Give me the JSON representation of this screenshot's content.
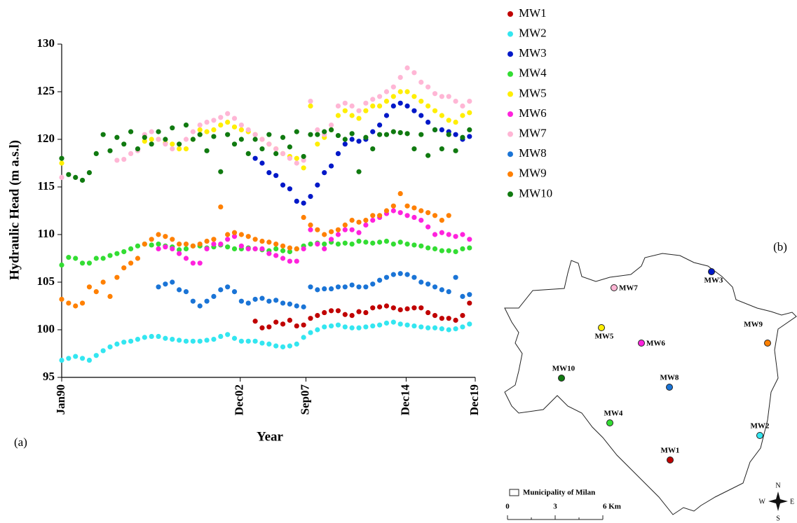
{
  "chart_data": {
    "type": "scatter",
    "y_label": "Hydraulic Head (m a.s.l)",
    "x_label": "Year",
    "panel_label": "(a)",
    "x": [
      "1990-01",
      "1990-07",
      "1991-01",
      "1991-07",
      "1992-01",
      "1992-07",
      "1993-01",
      "1993-07",
      "1994-01",
      "1994-07",
      "1995-01",
      "1995-07",
      "1996-01",
      "1996-07",
      "1997-01",
      "1997-07",
      "1998-01",
      "1998-07",
      "1999-01",
      "1999-07",
      "2000-01",
      "2000-07",
      "2001-01",
      "2001-07",
      "2002-01",
      "2002-07",
      "2003-01",
      "2003-07",
      "2004-01",
      "2004-07",
      "2005-01",
      "2005-07",
      "2006-01",
      "2006-07",
      "2007-01",
      "2007-07",
      "2008-01",
      "2008-07",
      "2009-01",
      "2009-07",
      "2010-01",
      "2010-07",
      "2011-01",
      "2011-07",
      "2012-01",
      "2012-07",
      "2013-01",
      "2013-07",
      "2014-01",
      "2014-07",
      "2015-01",
      "2015-07",
      "2016-01",
      "2016-07",
      "2017-01",
      "2017-07",
      "2018-01",
      "2018-07",
      "2019-01",
      "2019-07"
    ],
    "xlim": [
      "1990-01",
      "2019-12"
    ],
    "xticks": [
      {
        "value": "1990-01",
        "label": "Jan90"
      },
      {
        "value": "2002-12",
        "label": "Dec02"
      },
      {
        "value": "2007-09",
        "label": "Sep07"
      },
      {
        "value": "2014-12",
        "label": "Dec14"
      },
      {
        "value": "2019-12",
        "label": "Dec19"
      }
    ],
    "ylim": [
      95,
      130
    ],
    "yticks": [
      95,
      100,
      105,
      110,
      115,
      120,
      125,
      130
    ],
    "series": [
      {
        "name": "MW1",
        "color": "#c00000",
        "values": [
          null,
          null,
          null,
          null,
          null,
          null,
          null,
          null,
          null,
          null,
          null,
          null,
          null,
          null,
          null,
          null,
          null,
          null,
          null,
          null,
          null,
          null,
          null,
          null,
          null,
          null,
          null,
          null,
          100.9,
          100.2,
          100.3,
          100.8,
          100.6,
          101.0,
          100.4,
          100.5,
          101.2,
          101.5,
          101.8,
          102.0,
          102.0,
          101.6,
          101.5,
          101.9,
          101.8,
          102.3,
          102.4,
          102.5,
          102.3,
          102.1,
          102.2,
          102.3,
          102.3,
          101.8,
          101.5,
          101.2,
          101.2,
          101.0,
          101.5,
          102.8
        ]
      },
      {
        "name": "MW2",
        "color": "#33e6f0",
        "values": [
          96.8,
          97.0,
          97.2,
          97.0,
          96.8,
          97.3,
          97.8,
          98.2,
          98.5,
          98.7,
          98.8,
          99.0,
          99.2,
          99.3,
          99.3,
          99.1,
          99.0,
          98.9,
          98.8,
          98.8,
          98.8,
          98.9,
          99.0,
          99.3,
          99.5,
          99.1,
          98.8,
          98.8,
          98.8,
          98.6,
          98.5,
          98.3,
          98.2,
          98.3,
          98.5,
          99.2,
          99.7,
          100.0,
          100.3,
          100.4,
          100.5,
          100.3,
          100.2,
          100.2,
          100.3,
          100.4,
          100.5,
          100.7,
          100.8,
          100.6,
          100.5,
          100.4,
          100.3,
          100.2,
          100.2,
          100.1,
          100.0,
          100.1,
          100.3,
          100.6
        ]
      },
      {
        "name": "MW3",
        "color": "#0018c8",
        "values": [
          null,
          null,
          null,
          null,
          null,
          null,
          null,
          null,
          null,
          null,
          null,
          null,
          null,
          null,
          null,
          null,
          null,
          null,
          null,
          null,
          null,
          null,
          null,
          null,
          null,
          null,
          null,
          null,
          118.0,
          117.5,
          116.5,
          116.2,
          115.2,
          114.8,
          113.5,
          113.3,
          114.0,
          115.2,
          116.5,
          117.2,
          118.5,
          119.5,
          120.0,
          119.8,
          120.0,
          120.8,
          121.5,
          122.5,
          123.5,
          123.8,
          123.5,
          123.0,
          122.5,
          121.8,
          121.0,
          121.0,
          120.8,
          120.5,
          120.0,
          120.3
        ]
      },
      {
        "name": "MW4",
        "color": "#33dd33",
        "values": [
          106.8,
          107.6,
          107.5,
          107.0,
          107.0,
          107.5,
          107.5,
          107.8,
          108.0,
          108.2,
          108.5,
          108.8,
          109.0,
          108.9,
          109.0,
          108.8,
          108.7,
          108.4,
          108.5,
          108.8,
          108.8,
          108.6,
          108.7,
          108.9,
          108.7,
          108.5,
          108.5,
          108.6,
          108.5,
          108.4,
          108.3,
          108.5,
          108.3,
          108.2,
          108.5,
          108.8,
          109.0,
          109.1,
          109.0,
          109.2,
          109.0,
          109.1,
          109.0,
          109.3,
          109.2,
          109.1,
          109.2,
          109.3,
          109.0,
          109.2,
          109.0,
          108.9,
          108.8,
          108.6,
          108.5,
          108.3,
          108.3,
          108.2,
          108.5,
          108.6
        ]
      },
      {
        "name": "MW5",
        "color": "#ffee00",
        "values": [
          117.5,
          null,
          null,
          null,
          null,
          null,
          null,
          null,
          null,
          null,
          null,
          null,
          119.8,
          120.0,
          120.0,
          119.6,
          119.5,
          119.0,
          119.0,
          120.0,
          121.0,
          120.8,
          121.0,
          121.5,
          121.8,
          121.3,
          121.0,
          120.8,
          120.5,
          120.0,
          119.5,
          119.0,
          118.5,
          118.2,
          118.0,
          117.0,
          123.5,
          119.5,
          120.2,
          121.0,
          122.5,
          123.0,
          122.5,
          122.2,
          123.0,
          123.5,
          123.5,
          124.0,
          124.5,
          125.0,
          125.0,
          124.5,
          124.0,
          123.5,
          123.0,
          122.5,
          122.0,
          121.8,
          122.5,
          122.8
        ]
      },
      {
        "name": "MW6",
        "color": "#ff22dd",
        "values": [
          null,
          null,
          null,
          null,
          null,
          null,
          null,
          null,
          null,
          null,
          null,
          null,
          null,
          null,
          108.5,
          108.7,
          108.5,
          108.0,
          107.5,
          107.0,
          107.0,
          108.5,
          109.0,
          109.0,
          109.5,
          109.8,
          108.8,
          108.5,
          108.5,
          108.5,
          108.0,
          107.8,
          107.5,
          107.2,
          107.2,
          108.5,
          110.5,
          109.0,
          108.5,
          109.5,
          110.0,
          110.5,
          110.5,
          110.2,
          111.0,
          111.5,
          111.8,
          112.2,
          112.5,
          112.3,
          112.0,
          111.8,
          111.5,
          110.8,
          110.0,
          110.2,
          110.0,
          109.8,
          110.0,
          109.5
        ]
      },
      {
        "name": "MW7",
        "color": "#ffb6d5",
        "values": [
          116.0,
          null,
          null,
          null,
          null,
          null,
          null,
          null,
          117.8,
          117.9,
          118.5,
          118.8,
          120.5,
          120.8,
          120.0,
          119.5,
          119.0,
          119.5,
          120.0,
          120.8,
          121.5,
          121.8,
          122.0,
          122.3,
          122.7,
          122.2,
          121.5,
          121.0,
          120.5,
          120.0,
          119.5,
          119.0,
          118.5,
          118.0,
          117.5,
          117.8,
          124.0,
          121.0,
          120.5,
          121.5,
          123.5,
          123.8,
          123.5,
          123.0,
          123.8,
          124.2,
          124.5,
          125.0,
          125.5,
          126.5,
          127.5,
          127.0,
          126.0,
          125.5,
          124.8,
          124.5,
          124.5,
          124.0,
          123.5,
          124.0
        ]
      },
      {
        "name": "MW8",
        "color": "#1a74d6",
        "values": [
          null,
          null,
          null,
          null,
          null,
          null,
          null,
          null,
          null,
          null,
          null,
          null,
          null,
          null,
          104.5,
          104.8,
          105.0,
          104.2,
          104.0,
          103.0,
          102.5,
          103.0,
          103.5,
          104.2,
          104.5,
          104.0,
          103.0,
          102.8,
          103.2,
          103.3,
          103.0,
          103.1,
          102.8,
          102.7,
          102.5,
          102.4,
          104.5,
          104.2,
          104.3,
          104.3,
          104.5,
          104.5,
          104.7,
          104.5,
          104.5,
          104.8,
          105.2,
          105.5,
          105.8,
          105.9,
          105.8,
          105.5,
          105.0,
          104.8,
          104.5,
          104.2,
          104.0,
          105.5,
          103.5,
          103.7
        ]
      },
      {
        "name": "MW9",
        "color": "#ff8000",
        "values": [
          103.2,
          102.8,
          102.5,
          102.8,
          104.5,
          104.0,
          105.0,
          103.5,
          105.5,
          106.5,
          107.0,
          107.5,
          109.0,
          109.5,
          110.0,
          109.8,
          109.5,
          109.0,
          109.0,
          108.8,
          109.0,
          109.3,
          109.5,
          112.9,
          110.0,
          110.2,
          110.0,
          109.8,
          109.5,
          109.3,
          109.2,
          109.0,
          108.8,
          108.6,
          108.5,
          111.8,
          111.0,
          110.5,
          110.0,
          110.3,
          110.5,
          111.0,
          111.5,
          111.3,
          111.5,
          112.0,
          112.0,
          112.5,
          113.0,
          114.3,
          113.0,
          112.8,
          112.5,
          112.3,
          112.0,
          111.5,
          112.0,
          null,
          null,
          null
        ]
      },
      {
        "name": "MW10",
        "color": "#107a10",
        "values": [
          118.0,
          116.3,
          116.0,
          115.7,
          116.5,
          118.5,
          120.5,
          118.8,
          120.2,
          119.5,
          120.8,
          119.0,
          120.2,
          119.5,
          120.8,
          120.0,
          121.2,
          119.5,
          121.5,
          120.0,
          120.5,
          118.8,
          120.3,
          116.6,
          120.5,
          119.5,
          120.0,
          118.5,
          120.0,
          119.0,
          120.5,
          118.5,
          120.2,
          119.2,
          120.8,
          118.2,
          120.5,
          120.5,
          120.8,
          121.0,
          120.4,
          120.0,
          120.6,
          116.6,
          120.2,
          119.0,
          120.5,
          120.5,
          120.8,
          120.7,
          120.6,
          119.0,
          120.5,
          118.3,
          121.0,
          119.0,
          120.5,
          118.8,
          120.2,
          121.0
        ]
      }
    ]
  },
  "map": {
    "panel_label": "(b)",
    "legend_label": "Municipality of Milan",
    "scale_labels": [
      "0",
      "3",
      "6 Km"
    ],
    "compass": {
      "north": "N",
      "south": "S",
      "west": "W",
      "east": "E"
    }
  }
}
